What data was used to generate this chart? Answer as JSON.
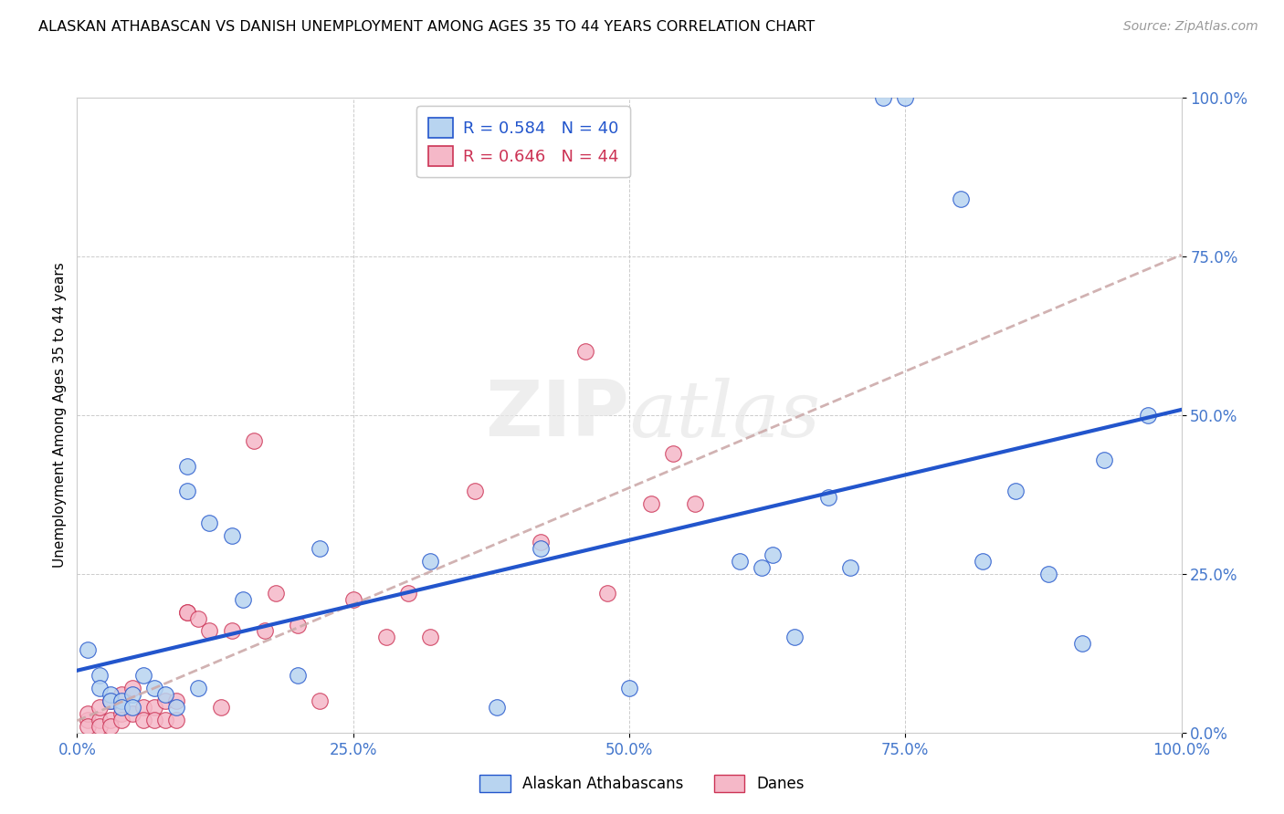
{
  "title": "ALASKAN ATHABASCAN VS DANISH UNEMPLOYMENT AMONG AGES 35 TO 44 YEARS CORRELATION CHART",
  "source": "Source: ZipAtlas.com",
  "ylabel": "Unemployment Among Ages 35 to 44 years",
  "legend_label1": "Alaskan Athabascans",
  "legend_label2": "Danes",
  "R1": "0.584",
  "N1": "40",
  "R2": "0.646",
  "N2": "44",
  "color1": "#b8d4f0",
  "color2": "#f5b8c8",
  "line_color1": "#2255cc",
  "line_color2": "#cc3355",
  "dashed_color": "#ccaaaa",
  "bg_color": "#ffffff",
  "grid_color": "#cccccc",
  "tick_color": "#4477cc",
  "xtick_labels": [
    "0.0%",
    "25.0%",
    "50.0%",
    "75.0%",
    "100.0%"
  ],
  "ytick_labels": [
    "0.0%",
    "25.0%",
    "50.0%",
    "75.0%",
    "100.0%"
  ],
  "blue_x": [
    0.01,
    0.02,
    0.02,
    0.03,
    0.03,
    0.04,
    0.04,
    0.05,
    0.05,
    0.06,
    0.07,
    0.08,
    0.09,
    0.1,
    0.1,
    0.11,
    0.12,
    0.14,
    0.15,
    0.2,
    0.22,
    0.32,
    0.38,
    0.42,
    0.5,
    0.6,
    0.62,
    0.63,
    0.65,
    0.68,
    0.7,
    0.73,
    0.75,
    0.8,
    0.82,
    0.85,
    0.88,
    0.91,
    0.93,
    0.97
  ],
  "blue_y": [
    0.13,
    0.09,
    0.07,
    0.06,
    0.05,
    0.05,
    0.04,
    0.06,
    0.04,
    0.09,
    0.07,
    0.06,
    0.04,
    0.42,
    0.38,
    0.07,
    0.33,
    0.31,
    0.21,
    0.09,
    0.29,
    0.27,
    0.04,
    0.29,
    0.07,
    0.27,
    0.26,
    0.28,
    0.15,
    0.37,
    0.26,
    1.0,
    1.0,
    0.84,
    0.27,
    0.38,
    0.25,
    0.14,
    0.43,
    0.5
  ],
  "pink_x": [
    0.01,
    0.01,
    0.01,
    0.02,
    0.02,
    0.02,
    0.03,
    0.03,
    0.03,
    0.04,
    0.04,
    0.04,
    0.05,
    0.05,
    0.06,
    0.06,
    0.07,
    0.07,
    0.08,
    0.08,
    0.09,
    0.09,
    0.1,
    0.1,
    0.11,
    0.12,
    0.13,
    0.14,
    0.16,
    0.17,
    0.18,
    0.2,
    0.22,
    0.25,
    0.28,
    0.3,
    0.32,
    0.36,
    0.42,
    0.46,
    0.48,
    0.52,
    0.54,
    0.56
  ],
  "pink_y": [
    0.02,
    0.03,
    0.01,
    0.02,
    0.04,
    0.01,
    0.02,
    0.05,
    0.01,
    0.03,
    0.06,
    0.02,
    0.03,
    0.07,
    0.04,
    0.02,
    0.04,
    0.02,
    0.05,
    0.02,
    0.05,
    0.02,
    0.19,
    0.19,
    0.18,
    0.16,
    0.04,
    0.16,
    0.46,
    0.16,
    0.22,
    0.17,
    0.05,
    0.21,
    0.15,
    0.22,
    0.15,
    0.38,
    0.3,
    0.6,
    0.22,
    0.36,
    0.44,
    0.36
  ]
}
